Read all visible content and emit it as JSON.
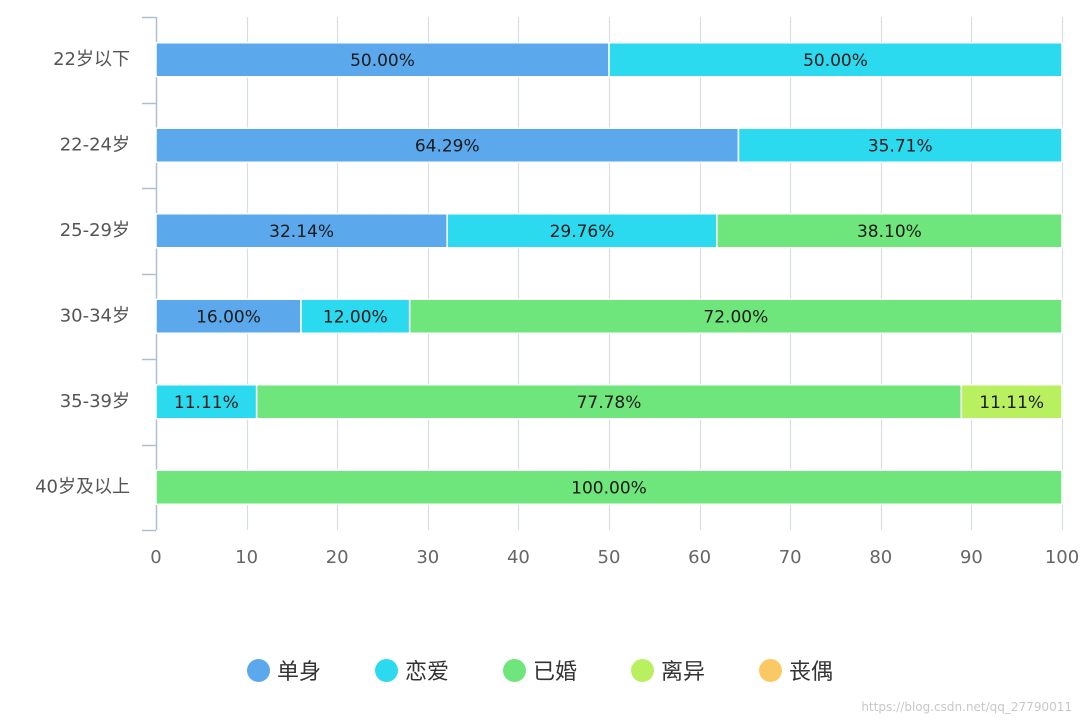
{
  "chart_data": {
    "type": "bar",
    "orientation": "horizontal",
    "stacked": true,
    "categories": [
      "22岁以下",
      "22-24岁",
      "25-29岁",
      "30-34岁",
      "35-39岁",
      "40岁及以上"
    ],
    "series": [
      {
        "name": "单身",
        "color": "#5ba8ec",
        "values": [
          50.0,
          64.29,
          32.14,
          16.0,
          0,
          0
        ]
      },
      {
        "name": "恋爱",
        "color": "#2cdaf0",
        "values": [
          50.0,
          35.71,
          29.76,
          12.0,
          11.11,
          0
        ]
      },
      {
        "name": "已婚",
        "color": "#6ee67c",
        "values": [
          0,
          0,
          38.1,
          72.0,
          77.78,
          100.0
        ]
      },
      {
        "name": "离异",
        "color": "#b8f060",
        "values": [
          0,
          0,
          0,
          0,
          11.11,
          0
        ]
      },
      {
        "name": "丧偶",
        "color": "#fbc964",
        "values": [
          0,
          0,
          0,
          0,
          0,
          0
        ]
      }
    ],
    "xlim": [
      0,
      100
    ],
    "xticks": [
      0,
      10,
      20,
      30,
      40,
      50,
      60,
      70,
      80,
      90,
      100
    ],
    "grid": true,
    "legend_position": "bottom",
    "label_suffix": "%"
  },
  "watermark": "https://blog.csdn.net/qq_27790011"
}
